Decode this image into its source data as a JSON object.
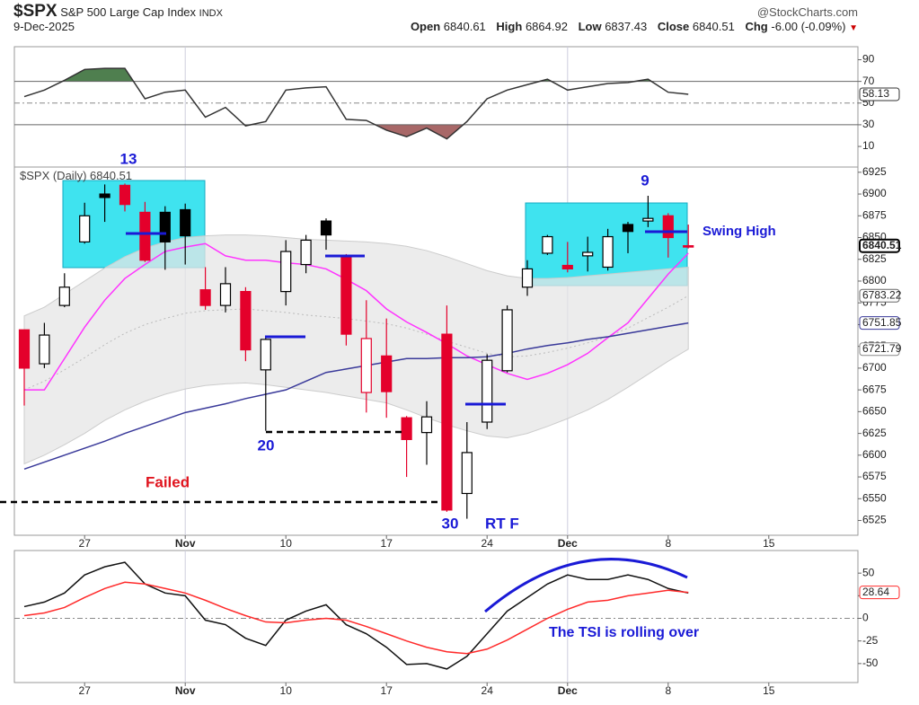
{
  "header": {
    "symbol": "$SPX",
    "name": "S&P 500 Large Cap Index",
    "exchange": "INDX",
    "date": "9-Dec-2025",
    "source": "@StockCharts.com",
    "quote": [
      {
        "label": "Open",
        "value": 6840.61
      },
      {
        "label": "High",
        "value": 6864.92
      },
      {
        "label": "Low",
        "value": 6837.43
      },
      {
        "label": "Close",
        "value": 6840.51
      },
      {
        "label": "Chg",
        "value": "-6.00 (-0.09%)"
      }
    ]
  },
  "chart_data": [
    {
      "type": "line",
      "x": [
        "Oct 22",
        "Oct 23",
        "Oct 24",
        "Oct 27",
        "Oct 28",
        "Oct 29",
        "Oct 30",
        "Oct 31",
        "Nov 3",
        "Nov 4",
        "Nov 5",
        "Nov 6",
        "Nov 7",
        "Nov 10",
        "Nov 11",
        "Nov 12",
        "Nov 13",
        "Nov 14",
        "Nov 17",
        "Nov 18",
        "Nov 19",
        "Nov 20",
        "Nov 21",
        "Nov 24",
        "Nov 25",
        "Nov 26",
        "Nov 28",
        "Dec 1",
        "Dec 2",
        "Dec 3",
        "Dec 4",
        "Dec 5",
        "Dec 8",
        "Dec 9"
      ],
      "series": [
        {
          "color": "#333333",
          "tag": true,
          "values": [
            56,
            62,
            71,
            81,
            82,
            82,
            54,
            60,
            62,
            37,
            46,
            29,
            33,
            62,
            64,
            65,
            35,
            34,
            25,
            19,
            27,
            17,
            33,
            54,
            62,
            67,
            72,
            62,
            65,
            68,
            69,
            72,
            60,
            58.13
          ]
        }
      ],
      "overbought_color": "#4f7f4f",
      "oversold_color": "#a86868",
      "ylim": [
        -9,
        102
      ],
      "yticks": [
        90,
        70,
        50,
        30,
        10
      ]
    },
    {
      "type": "candlestick",
      "legend": "$SPX (Daily)",
      "x": [
        "Oct 22",
        "Oct 23",
        "Oct 24",
        "Oct 27",
        "Oct 28",
        "Oct 29",
        "Oct 30",
        "Oct 31",
        "Nov 3",
        "Nov 4",
        "Nov 5",
        "Nov 6",
        "Nov 7",
        "Nov 10",
        "Nov 11",
        "Nov 12",
        "Nov 13",
        "Nov 14",
        "Nov 17",
        "Nov 18",
        "Nov 19",
        "Nov 20",
        "Nov 21",
        "Nov 24",
        "Nov 25",
        "Nov 26",
        "Nov 28",
        "Dec 1",
        "Dec 2",
        "Dec 3",
        "Dec 4",
        "Dec 5",
        "Dec 8",
        "Dec 9"
      ],
      "open": [
        6744,
        6705,
        6772,
        6845,
        6900,
        6910,
        6879,
        6879,
        6882,
        6790,
        6772,
        6788,
        6698,
        6788,
        6819,
        6869,
        6829,
        6672,
        6714,
        6643,
        6626,
        6739,
        6556,
        6638,
        6697,
        6793,
        6832,
        6818,
        6829,
        6816,
        6865,
        6869,
        6875,
        6840.61
      ],
      "high": [
        6744,
        6752,
        6809,
        6890,
        6911,
        6912,
        6891,
        6886,
        6889,
        6816,
        6816,
        6793,
        6736,
        6847,
        6853,
        6872,
        6831,
        6778,
        6757,
        6645,
        6662,
        6772,
        6638,
        6716,
        6772,
        6824,
        6853,
        6845,
        6851,
        6860,
        6868,
        6898,
        6878,
        6864.92
      ],
      "low": [
        6657,
        6700,
        6770,
        6843,
        6868,
        6880,
        6822,
        6813,
        6819,
        6767,
        6764,
        6708,
        6628,
        6772,
        6809,
        6836,
        6726,
        6649,
        6643,
        6575,
        6589,
        6535,
        6527,
        6630,
        6695,
        6783,
        6830,
        6810,
        6811,
        6812,
        6832,
        6862,
        6827,
        6837.43
      ],
      "close": [
        6700,
        6738,
        6793,
        6875,
        6896,
        6888,
        6824,
        6845,
        6852,
        6772,
        6797,
        6721,
        6733,
        6834,
        6847,
        6853,
        6739,
        6734,
        6673,
        6618,
        6644,
        6537,
        6603,
        6709,
        6767,
        6814,
        6851,
        6814,
        6833,
        6851,
        6857,
        6872,
        6850,
        6840.51
      ],
      "colors": [
        "#e4002b",
        "#000000",
        "#000000",
        "#000000",
        "#000000",
        "#e4002b",
        "#e4002b",
        "#000000",
        "#000000",
        "#e4002b",
        "#000000",
        "#e4002b",
        "#000000",
        "#000000",
        "#000000",
        "#000000",
        "#e4002b",
        "#e4002b",
        "#e4002b",
        "#e4002b",
        "#000000",
        "#e4002b",
        "#000000",
        "#000000",
        "#000000",
        "#000000",
        "#000000",
        "#e4002b",
        "#000000",
        "#000000",
        "#000000",
        "#000000",
        "#e4002b",
        "#e4002b"
      ],
      "band": {
        "color": "#e6e6e6",
        "upper": [
          6760,
          6770,
          6785,
          6800,
          6815,
          6828,
          6838,
          6845,
          6850,
          6852,
          6853,
          6853,
          6852,
          6850,
          6848,
          6847,
          6846,
          6845,
          6843,
          6840,
          6835,
          6828,
          6820,
          6812,
          6806,
          6803,
          6803,
          6804,
          6806,
          6808,
          6810,
          6812,
          6814,
          6816
        ],
        "lower": [
          6590,
          6600,
          6612,
          6625,
          6640,
          6652,
          6662,
          6670,
          6676,
          6680,
          6682,
          6683,
          6681,
          6678,
          6675,
          6672,
          6668,
          6664,
          6660,
          6652,
          6643,
          6635,
          6628,
          6622,
          6620,
          6625,
          6633,
          6642,
          6652,
          6664,
          6678,
          6693,
          6708,
          6721.79
        ]
      },
      "series": [
        {
          "color": "#bbbbbb",
          "dash": true,
          "tag": true,
          "values": [
            6675,
            6685,
            6698,
            6712,
            6727,
            6740,
            6750,
            6757,
            6763,
            6766,
            6767,
            6768,
            6766,
            6764,
            6761,
            6759,
            6757,
            6754,
            6751,
            6746,
            6739,
            6731,
            6724,
            6717,
            6713,
            6714,
            6718,
            6723,
            6729,
            6736,
            6746,
            6758,
            6770,
            6783.22
          ]
        },
        {
          "color": "#ff33ff",
          "values": [
            6675,
            6675,
            6711,
            6747,
            6778,
            6803,
            6819,
            6834,
            6839,
            6843,
            6829,
            6824,
            6824,
            6821,
            6819,
            6814,
            6802,
            6789,
            6768,
            6753,
            6741,
            6728,
            6714,
            6704,
            6694,
            6687,
            6694,
            6704,
            6717,
            6735,
            6752,
            6780,
            6808,
            6832
          ]
        },
        {
          "color": "#3a3a9a",
          "tag": true,
          "values": [
            6584,
            6592,
            6600,
            6608,
            6616,
            6625,
            6633,
            6641,
            6649,
            6654,
            6659,
            6665,
            6670,
            6675,
            6685,
            6695,
            6699,
            6703,
            6707,
            6711,
            6711,
            6712,
            6712,
            6713,
            6717,
            6722,
            6726,
            6729,
            6733,
            6736,
            6740,
            6744,
            6748,
            6751.85
          ]
        }
      ],
      "annotations": [
        "13",
        "9",
        "Swing High",
        "Failed",
        "20",
        "30",
        "RT F"
      ],
      "ylim": [
        6508,
        6931
      ],
      "yticks": [
        6525,
        6550,
        6575,
        6600,
        6625,
        6650,
        6675,
        6700,
        6725,
        6750,
        6775,
        6800,
        6825,
        6850,
        6875,
        6900,
        6925
      ],
      "xticks": [
        {
          "value": "Oct 27",
          "label": "27"
        },
        {
          "value": "Nov 3",
          "label": "Nov"
        },
        {
          "value": "Nov 10",
          "label": "10"
        },
        {
          "value": "Nov 17",
          "label": "17"
        },
        {
          "value": "Nov 24",
          "label": "24"
        },
        {
          "value": "Dec 1",
          "label": "Dec"
        },
        {
          "value": "Dec 8",
          "label": "8"
        },
        {
          "value": "Dec 15",
          "label": "15"
        }
      ]
    },
    {
      "type": "line",
      "x": [
        "Oct 22",
        "Oct 23",
        "Oct 24",
        "Oct 27",
        "Oct 28",
        "Oct 29",
        "Oct 30",
        "Oct 31",
        "Nov 3",
        "Nov 4",
        "Nov 5",
        "Nov 6",
        "Nov 7",
        "Nov 10",
        "Nov 11",
        "Nov 12",
        "Nov 13",
        "Nov 14",
        "Nov 17",
        "Nov 18",
        "Nov 19",
        "Nov 20",
        "Nov 21",
        "Nov 24",
        "Nov 25",
        "Nov 26",
        "Nov 28",
        "Dec 1",
        "Dec 2",
        "Dec 3",
        "Dec 4",
        "Dec 5",
        "Dec 8",
        "Dec 9"
      ],
      "series": [
        {
          "color": "#111111",
          "values": [
            13,
            18,
            28,
            48,
            57,
            62,
            38,
            28,
            25,
            -2,
            -7,
            -22,
            -30,
            -2,
            8,
            15,
            -7,
            -17,
            -32,
            -51,
            -50,
            -56,
            -42,
            -17,
            8,
            23,
            38,
            48,
            43,
            43,
            48,
            43,
            33,
            28
          ]
        },
        {
          "color": "#ff2a2a",
          "tag": true,
          "values": [
            3,
            6,
            12,
            23,
            33,
            40,
            38,
            33,
            28,
            20,
            11,
            3,
            -4,
            -5,
            -2,
            0,
            -2,
            -9,
            -17,
            -25,
            -32,
            -37,
            -39,
            -34,
            -24,
            -12,
            0,
            10,
            18,
            20,
            25,
            28,
            31,
            28.64
          ]
        }
      ],
      "annotations": [
        "The TSI is rolling over"
      ],
      "ylim": [
        -71,
        75
      ],
      "yticks": [
        50,
        25,
        0,
        -25,
        -50
      ],
      "xticks": [
        {
          "value": "Oct 27",
          "label": "27"
        },
        {
          "value": "Nov 3",
          "label": "Nov"
        },
        {
          "value": "Nov 10",
          "label": "10"
        },
        {
          "value": "Nov 17",
          "label": "17"
        },
        {
          "value": "Nov 24",
          "label": "24"
        },
        {
          "value": "Dec 1",
          "label": "Dec"
        },
        {
          "value": "Dec 8",
          "label": "8"
        },
        {
          "value": "Dec 15",
          "label": "15"
        }
      ]
    }
  ]
}
